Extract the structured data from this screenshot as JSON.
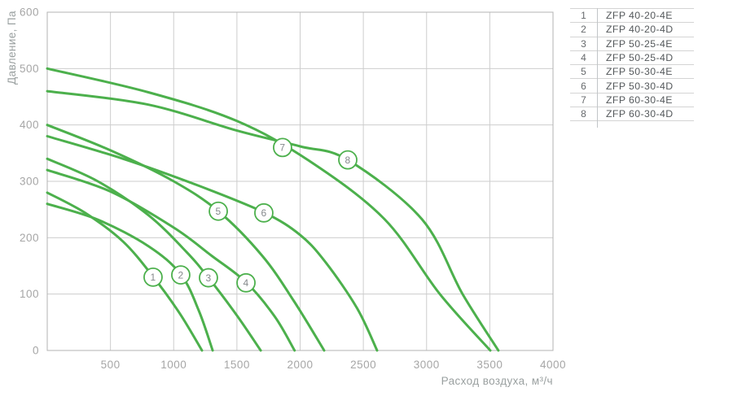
{
  "chart_data": {
    "type": "line",
    "title": "",
    "xlabel": "Расход воздуха, м³/ч",
    "ylabel": "Давление, Па",
    "xlim": [
      0,
      4000
    ],
    "ylim": [
      0,
      600
    ],
    "x_ticks": [
      500,
      1000,
      1500,
      2000,
      2500,
      3000,
      3500,
      4000
    ],
    "y_ticks": [
      0,
      100,
      200,
      300,
      400,
      500,
      600
    ],
    "grid": true,
    "legend_position": "right-table",
    "colors": {
      "curve": "#4cb04c",
      "grid": "#cdcdcd",
      "border": "#b3b3b3",
      "tick_text": "#a6a6a6",
      "axis_title": "#9aa0a0",
      "badge_text": "#85898c",
      "badge_fill": "#ffffff",
      "legend_text": "#54585b",
      "legend_num": "#66696c",
      "legend_line": "#d4d4d4"
    },
    "series": [
      {
        "num": "1",
        "name": "ZFP 40-20-4E",
        "badge_at": [
          837,
          130
        ],
        "points": [
          [
            0,
            280
          ],
          [
            300,
            244
          ],
          [
            600,
            193
          ],
          [
            837,
            131
          ],
          [
            1050,
            65
          ],
          [
            1224,
            0
          ]
        ]
      },
      {
        "num": "2",
        "name": "ZFP 40-20-4D",
        "badge_at": [
          1056,
          134
        ],
        "points": [
          [
            0,
            260
          ],
          [
            400,
            232
          ],
          [
            800,
            185
          ],
          [
            1056,
            135
          ],
          [
            1200,
            70
          ],
          [
            1308,
            0
          ]
        ]
      },
      {
        "num": "3",
        "name": "ZFP 50-25-4E",
        "badge_at": [
          1275,
          129
        ],
        "points": [
          [
            0,
            340
          ],
          [
            400,
            300
          ],
          [
            800,
            240
          ],
          [
            1100,
            175
          ],
          [
            1275,
            129
          ],
          [
            1500,
            62
          ],
          [
            1688,
            0
          ]
        ]
      },
      {
        "num": "4",
        "name": "ZFP 50-25-4D",
        "badge_at": [
          1572,
          120
        ],
        "points": [
          [
            0,
            320
          ],
          [
            500,
            282
          ],
          [
            1000,
            218
          ],
          [
            1300,
            168
          ],
          [
            1572,
            121
          ],
          [
            1800,
            60
          ],
          [
            1956,
            0
          ]
        ]
      },
      {
        "num": "5",
        "name": "ZFP 50-30-4E",
        "badge_at": [
          1353,
          247
        ],
        "points": [
          [
            0,
            400
          ],
          [
            500,
            355
          ],
          [
            1000,
            300
          ],
          [
            1353,
            247
          ],
          [
            1700,
            168
          ],
          [
            1950,
            88
          ],
          [
            2190,
            0
          ]
        ]
      },
      {
        "num": "6",
        "name": "ZFP 50-30-4D",
        "badge_at": [
          1713,
          244
        ],
        "points": [
          [
            0,
            380
          ],
          [
            600,
            340
          ],
          [
            1200,
            292
          ],
          [
            1713,
            245
          ],
          [
            2000,
            205
          ],
          [
            2203,
            156
          ],
          [
            2450,
            75
          ],
          [
            2609,
            0
          ]
        ]
      },
      {
        "num": "7",
        "name": "ZFP 60-30-4E",
        "badge_at": [
          1861,
          360
        ],
        "points": [
          [
            0,
            500
          ],
          [
            800,
            458
          ],
          [
            1500,
            407
          ],
          [
            2074,
            336
          ],
          [
            2667,
            233
          ],
          [
            3105,
            100
          ],
          [
            3504,
            0
          ]
        ]
      },
      {
        "num": "8",
        "name": "ZFP 60-30-4D",
        "badge_at": [
          2377,
          338
        ],
        "points": [
          [
            0,
            460
          ],
          [
            800,
            436
          ],
          [
            1500,
            390
          ],
          [
            2000,
            362
          ],
          [
            2377,
            338
          ],
          [
            2963,
            233
          ],
          [
            3285,
            100
          ],
          [
            3568,
            0
          ]
        ]
      }
    ]
  },
  "legend": {
    "rows": [
      {
        "num": "1",
        "model": "ZFP 40-20-4E"
      },
      {
        "num": "2",
        "model": "ZFP 40-20-4D"
      },
      {
        "num": "3",
        "model": "ZFP 50-25-4E"
      },
      {
        "num": "4",
        "model": "ZFP 50-25-4D"
      },
      {
        "num": "5",
        "model": "ZFP 50-30-4E"
      },
      {
        "num": "6",
        "model": "ZFP 50-30-4D"
      },
      {
        "num": "7",
        "model": "ZFP 60-30-4E"
      },
      {
        "num": "8",
        "model": "ZFP 60-30-4D"
      }
    ]
  }
}
